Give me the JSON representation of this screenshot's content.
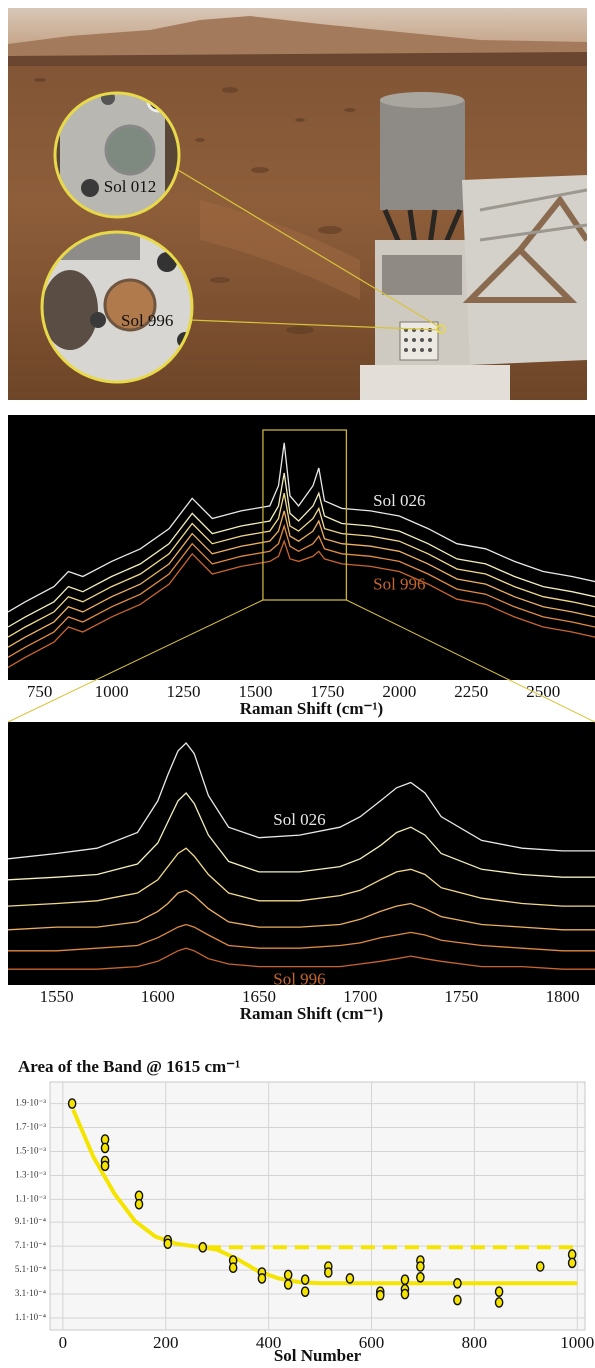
{
  "photo": {
    "labels": [
      "Sol 012",
      "Sol 996"
    ]
  },
  "chart_data": [
    {
      "type": "line",
      "xlabel": "Raman Shift (cm⁻¹)",
      "x": [
        640,
        700,
        800,
        850,
        900,
        1000,
        1100,
        1200,
        1280,
        1350,
        1450,
        1550,
        1580,
        1600,
        1620,
        1650,
        1700,
        1720,
        1740,
        1800,
        1900,
        2000,
        2100,
        2200,
        2300,
        2400,
        2500,
        2600,
        2680
      ],
      "xlim": [
        640,
        2680
      ],
      "ylim": [
        -5,
        100
      ],
      "xticks": [
        750,
        1000,
        1250,
        1500,
        1750,
        2000,
        2250,
        2500
      ],
      "series": [
        {
          "name": "Sol 026",
          "color": "#e8e8e8",
          "values": [
            22,
            26,
            32,
            38,
            36,
            42,
            47,
            55,
            67,
            59,
            62,
            64,
            72,
            89,
            68,
            64,
            72,
            79,
            66,
            63,
            62,
            60,
            55,
            49,
            47,
            42,
            38,
            36,
            34
          ]
        },
        {
          "color": "#f3eebc",
          "values": [
            16,
            20,
            26,
            32,
            30,
            36,
            41,
            49,
            61,
            53,
            56,
            58,
            64,
            77,
            61,
            58,
            64,
            69,
            60,
            57,
            56,
            54,
            49,
            43,
            41,
            36,
            32,
            30,
            28
          ]
        },
        {
          "color": "#f1d98a",
          "values": [
            12,
            16,
            22,
            28,
            26,
            32,
            37,
            45,
            57,
            49,
            52,
            54,
            59,
            69,
            56,
            54,
            59,
            63,
            55,
            53,
            52,
            50,
            45,
            39,
            37,
            32,
            28,
            26,
            24
          ]
        },
        {
          "color": "#eeb060",
          "values": [
            8,
            12,
            18,
            24,
            22,
            28,
            33,
            41,
            53,
            45,
            48,
            50,
            54,
            62,
            52,
            50,
            54,
            58,
            51,
            49,
            48,
            46,
            41,
            35,
            33,
            28,
            24,
            22,
            20
          ]
        },
        {
          "color": "#e08a40",
          "values": [
            4,
            8,
            14,
            20,
            18,
            24,
            29,
            37,
            49,
            41,
            44,
            46,
            49,
            56,
            48,
            46,
            49,
            52,
            47,
            45,
            44,
            42,
            37,
            31,
            29,
            24,
            20,
            18,
            16
          ]
        },
        {
          "name": "Sol 996",
          "color": "#c8652e",
          "values": [
            0,
            4,
            10,
            16,
            14,
            20,
            25,
            33,
            45,
            37,
            40,
            42,
            44,
            50,
            43,
            42,
            44,
            46,
            43,
            41,
            40,
            38,
            33,
            27,
            25,
            20,
            16,
            14,
            12
          ]
        }
      ]
    },
    {
      "type": "line",
      "xlabel": "Raman Shift (cm⁻¹)",
      "x": [
        1526,
        1550,
        1570,
        1590,
        1600,
        1605,
        1610,
        1614,
        1618,
        1625,
        1635,
        1650,
        1670,
        1690,
        1700,
        1710,
        1718,
        1725,
        1732,
        1740,
        1760,
        1780,
        1800,
        1816
      ],
      "xlim": [
        1526,
        1816
      ],
      "ylim": [
        0,
        100
      ],
      "xticks": [
        1550,
        1600,
        1650,
        1700,
        1750,
        1800
      ],
      "series": [
        {
          "name": "Sol 026",
          "color": "#e8e8e8",
          "values": [
            48,
            50,
            52,
            58,
            70,
            80,
            89,
            92,
            88,
            72,
            60,
            56,
            57,
            60,
            64,
            70,
            75,
            77,
            73,
            64,
            55,
            52,
            51,
            51
          ]
        },
        {
          "color": "#f3eebc",
          "values": [
            40,
            41,
            42,
            46,
            54,
            62,
            70,
            73,
            69,
            57,
            47,
            43,
            43,
            45,
            48,
            53,
            58,
            60,
            57,
            50,
            44,
            42,
            41,
            41
          ]
        },
        {
          "color": "#f1d98a",
          "values": [
            30,
            31,
            32,
            35,
            40,
            45,
            50,
            52,
            49,
            42,
            35,
            32,
            32,
            34,
            36,
            40,
            43,
            44,
            42,
            37,
            33,
            31,
            30,
            30
          ]
        },
        {
          "color": "#eeb060",
          "values": [
            21,
            22,
            22,
            24,
            28,
            31,
            35,
            36,
            34,
            29,
            24,
            22,
            22,
            23,
            25,
            28,
            30,
            31,
            29,
            26,
            23,
            22,
            21,
            21
          ]
        },
        {
          "color": "#e08a40",
          "values": [
            13,
            13,
            14,
            15,
            18,
            20,
            22,
            23,
            22,
            19,
            15,
            14,
            14,
            15,
            16,
            18,
            19,
            20,
            19,
            17,
            15,
            14,
            13,
            13
          ]
        },
        {
          "name": "Sol 996",
          "color": "#c8652e",
          "values": [
            6,
            6,
            6,
            7,
            9,
            11,
            13,
            14,
            13,
            10,
            8,
            7,
            7,
            7,
            8,
            9,
            10,
            11,
            10,
            9,
            7,
            7,
            6,
            6
          ]
        }
      ]
    },
    {
      "type": "scatter",
      "title": "Area of the Band @ 1615 cm⁻¹",
      "xlabel": "Sol Number",
      "xlim": [
        -25,
        1015
      ],
      "ylim": [
        1e-05,
        0.00208
      ],
      "grid": true,
      "xticks": [
        0,
        200,
        400,
        600,
        800,
        1000
      ],
      "yticks": [
        {
          "value": 0.00011,
          "label": "1.1·10⁻⁴"
        },
        {
          "value": 0.00031,
          "label": "3.1·10⁻⁴"
        },
        {
          "value": 0.00051,
          "label": "5.1·10⁻⁴"
        },
        {
          "value": 0.00071,
          "label": "7.1·10⁻⁴"
        },
        {
          "value": 0.00091,
          "label": "9.1·10⁻⁴"
        },
        {
          "value": 0.0011,
          "label": "1.1·10⁻³"
        },
        {
          "value": 0.0013,
          "label": "1.3·10⁻³"
        },
        {
          "value": 0.0015,
          "label": "1.5·10⁻³"
        },
        {
          "value": 0.0017,
          "label": "1.7·10⁻³"
        },
        {
          "value": 0.0019,
          "label": "1.9·10⁻³"
        }
      ],
      "series": [
        {
          "mode": "line",
          "color": "#f5e400",
          "x": [
            20,
            60,
            100,
            140,
            180,
            220,
            260,
            300,
            340,
            380,
            420,
            460,
            500,
            1000
          ],
          "values": [
            0.00185,
            0.00145,
            0.00115,
            0.00092,
            0.00079,
            0.00073,
            0.000705,
            0.00068,
            0.0006,
            0.0005,
            0.00044,
            0.00041,
            0.0004,
            0.0004
          ]
        },
        {
          "mode": "dashed",
          "color": "#f5e400",
          "x": [
            280,
            1000
          ],
          "values": [
            0.0007,
            0.0007
          ]
        },
        {
          "mode": "markers",
          "color": "#f5e400",
          "x": [
            18,
            82,
            82,
            82,
            82,
            148,
            148,
            204,
            204,
            272,
            331,
            331,
            387,
            387,
            438,
            438,
            471,
            471,
            516,
            516,
            558,
            617,
            617,
            665,
            665,
            665,
            695,
            695,
            695,
            767,
            767,
            848,
            848,
            928,
            990,
            990
          ],
          "values": [
            0.0019,
            0.0016,
            0.00153,
            0.00142,
            0.00138,
            0.00113,
            0.00106,
            0.00076,
            0.00073,
            0.0007,
            0.00059,
            0.00053,
            0.00049,
            0.00044,
            0.00047,
            0.00039,
            0.00043,
            0.00033,
            0.00054,
            0.00049,
            0.00044,
            0.00033,
            0.0003,
            0.00043,
            0.00035,
            0.00031,
            0.00059,
            0.00054,
            0.00045,
            0.0004,
            0.00026,
            0.00033,
            0.00024,
            0.00054,
            0.00064,
            0.00057
          ]
        }
      ]
    }
  ]
}
